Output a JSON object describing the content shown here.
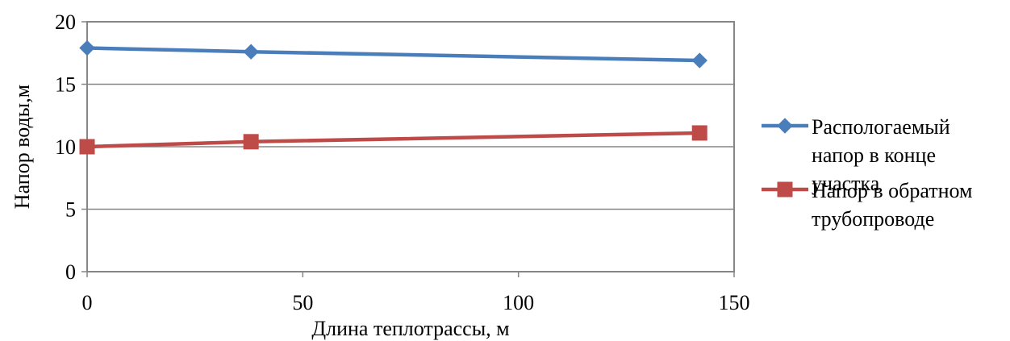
{
  "chart_data": {
    "type": "line",
    "xlabel": "Длина теплотрассы, м",
    "ylabel": "Напор воды,м",
    "xlim": [
      0,
      150
    ],
    "ylim": [
      0,
      20
    ],
    "xticks": [
      0,
      50,
      100,
      150
    ],
    "yticks": [
      0,
      5,
      10,
      15,
      20
    ],
    "grid": "horizontal",
    "legend_position": "right",
    "series": [
      {
        "name": "Распологаемый напор в конце участка",
        "legend_lines": [
          "Распологаемый",
          "напор в конце",
          "участка"
        ],
        "color": "#4a7ebb",
        "marker": "diamond",
        "x": [
          0,
          38,
          142
        ],
        "y": [
          17.9,
          17.6,
          16.9
        ]
      },
      {
        "name": "Напор в обратном трубопроводе",
        "legend_lines": [
          "Напор в обратном",
          "трубопроводе"
        ],
        "color": "#be4b48",
        "marker": "square",
        "x": [
          0,
          38,
          142
        ],
        "y": [
          10.0,
          10.4,
          11.1
        ]
      }
    ]
  }
}
